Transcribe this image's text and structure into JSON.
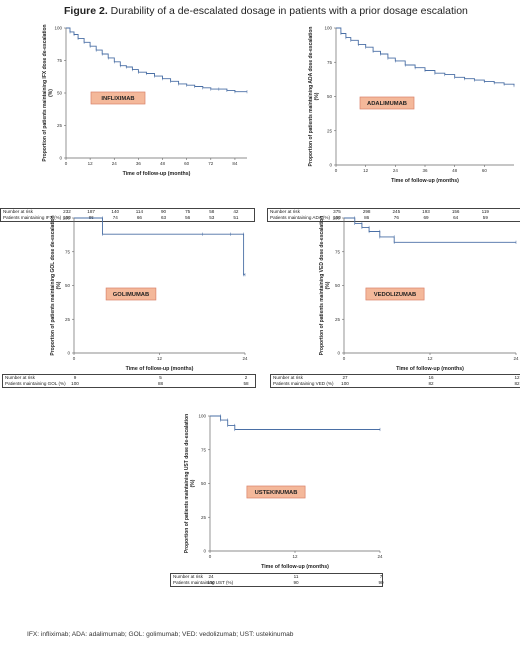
{
  "figure": {
    "title_bold": "Figure 2.",
    "title_rest": " Durability of a de-escalated dosage in patients with a prior dosage escalation",
    "footnote": "IFX: infliximab; ADA: adalimumab; GOL: golimumab; VED: vedolizumab; UST: ustekinumab"
  },
  "colors": {
    "curve": "#4a6fa5",
    "label_fill": "#f4b89a",
    "label_border": "#d9826a"
  },
  "chart_data": [
    {
      "type": "line",
      "drug_label": "INFLIXIMAB",
      "ylabel": "Proportion of patients maintaining IFX dose de-escalation (%)",
      "xlabel": "Time of follow-up (months)",
      "xlim": [
        0,
        90
      ],
      "ylim": [
        0,
        100
      ],
      "xticks": [
        0,
        12,
        24,
        36,
        48,
        60,
        72,
        84
      ],
      "yticks": [
        0,
        25,
        50,
        75,
        100
      ],
      "curve": {
        "x": [
          0,
          2,
          4,
          6,
          9,
          12,
          15,
          18,
          21,
          24,
          27,
          30,
          33,
          36,
          40,
          44,
          48,
          52,
          56,
          60,
          64,
          68,
          72,
          76,
          80,
          84,
          90
        ],
        "y": [
          100,
          97,
          95,
          92,
          89,
          86,
          83,
          80,
          77,
          74,
          71,
          70,
          68,
          66,
          65,
          63,
          61,
          59,
          57,
          56,
          55,
          54,
          53,
          53,
          52,
          51,
          51
        ]
      },
      "risk_table": {
        "labels": [
          "Number at risk",
          "Patients maintaining IFX (%)"
        ],
        "times": [
          0,
          12,
          24,
          36,
          48,
          60,
          72,
          84
        ],
        "rows": [
          [
            "232",
            "187",
            "140",
            "114",
            "90",
            "75",
            "58",
            "42"
          ],
          [
            "100",
            "86",
            "74",
            "66",
            "63",
            "56",
            "53",
            "51"
          ]
        ]
      }
    },
    {
      "type": "line",
      "drug_label": "ADALIMUMAB",
      "ylabel": "Proportion of patients maintaining ADA dose de-escalation (%)",
      "xlabel": "Time of follow-up (months)",
      "xlim": [
        0,
        72
      ],
      "ylim": [
        0,
        100
      ],
      "xticks": [
        0,
        12,
        24,
        36,
        48,
        60
      ],
      "yticks": [
        0,
        25,
        50,
        75,
        100
      ],
      "curve": {
        "x": [
          0,
          2,
          4,
          6,
          9,
          12,
          15,
          18,
          21,
          24,
          28,
          32,
          36,
          40,
          44,
          48,
          52,
          56,
          60,
          64,
          68,
          72
        ],
        "y": [
          100,
          96,
          93,
          91,
          88,
          86,
          83,
          81,
          78,
          76,
          73,
          71,
          69,
          67,
          66,
          64,
          63,
          62,
          61,
          60,
          59,
          58
        ]
      },
      "risk_table": {
        "labels": [
          "Number at risk",
          "Patients maintaining ADA (%)"
        ],
        "times": [
          0,
          12,
          24,
          36,
          48,
          60
        ],
        "rows": [
          [
            "375",
            "298",
            "245",
            "193",
            "156",
            "119"
          ],
          [
            "100",
            "86",
            "76",
            "69",
            "64",
            "59"
          ]
        ]
      }
    },
    {
      "type": "line",
      "drug_label": "GOLIMUMAB",
      "ylabel": "Proportion of patients maintaining GOL dose de-escalation (%)",
      "xlabel": "Time of follow-up (months)",
      "xlim": [
        0,
        24
      ],
      "ylim": [
        0,
        100
      ],
      "xticks": [
        0,
        12,
        24
      ],
      "yticks": [
        0,
        25,
        50,
        75,
        100
      ],
      "curve": {
        "x": [
          0,
          4,
          4,
          18,
          22,
          23.8,
          23.8,
          24
        ],
        "y": [
          100,
          100,
          88,
          88,
          88,
          88,
          58,
          58
        ]
      },
      "risk_table": {
        "labels": [
          "Number at risk",
          "Patients maintaining GOL (%)"
        ],
        "times": [
          0,
          12,
          24
        ],
        "rows": [
          [
            "9",
            "5",
            "2"
          ],
          [
            "100",
            "88",
            "58"
          ]
        ]
      }
    },
    {
      "type": "line",
      "drug_label": "VEDOLIZUMAB",
      "ylabel": "Proportion of patients maintaining VED dose de-escalation (%)",
      "xlabel": "Time of follow-up (months)",
      "xlim": [
        0,
        24
      ],
      "ylim": [
        0,
        100
      ],
      "xticks": [
        0,
        12,
        24
      ],
      "yticks": [
        0,
        25,
        50,
        75,
        100
      ],
      "curve": {
        "x": [
          0,
          1.5,
          1.5,
          2.5,
          2.5,
          3.5,
          3.5,
          5,
          5,
          7,
          7,
          24
        ],
        "y": [
          100,
          100,
          96,
          96,
          93,
          93,
          90,
          90,
          86,
          86,
          82,
          82
        ]
      },
      "risk_table": {
        "labels": [
          "Number at risk",
          "Patients maintaining VED (%)"
        ],
        "times": [
          0,
          12,
          24
        ],
        "rows": [
          [
            "27",
            "16",
            "12"
          ],
          [
            "100",
            "82",
            "82"
          ]
        ]
      }
    },
    {
      "type": "line",
      "drug_label": "USTEKINUMAB",
      "ylabel": "Proportion of patients maintaining UST dose de-escalation (%)",
      "xlabel": "Time of follow-up (months)",
      "xlim": [
        0,
        24
      ],
      "ylim": [
        0,
        100
      ],
      "xticks": [
        0,
        12,
        24
      ],
      "yticks": [
        0,
        25,
        50,
        75,
        100
      ],
      "curve": {
        "x": [
          0,
          1.5,
          1.5,
          2.5,
          2.5,
          3.5,
          3.5,
          24
        ],
        "y": [
          100,
          100,
          97,
          97,
          93,
          93,
          90,
          90
        ]
      },
      "risk_table": {
        "labels": [
          "Number at risk",
          "Patients maintaining UST (%)"
        ],
        "times": [
          0,
          12,
          24
        ],
        "rows": [
          [
            "24",
            "11",
            "7"
          ],
          [
            "100",
            "90",
            "90"
          ]
        ]
      }
    }
  ]
}
